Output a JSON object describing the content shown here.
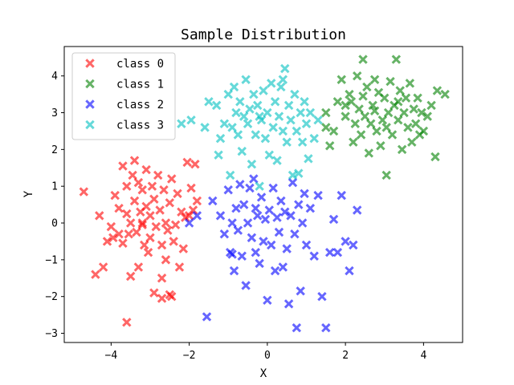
{
  "chart_data": {
    "type": "scatter",
    "title": "Sample Distribution",
    "xlabel": "X",
    "ylabel": "Y",
    "xlim": [
      -5.2,
      5.0
    ],
    "ylim": [
      -3.25,
      4.8
    ],
    "xticks": [
      -4,
      -2,
      0,
      2,
      4
    ],
    "yticks": [
      -3,
      -2,
      -1,
      0,
      1,
      2,
      3,
      4
    ],
    "xtick_labels": [
      "−4",
      "−2",
      "0",
      "2",
      "4"
    ],
    "ytick_labels": [
      "−3",
      "−2",
      "−1",
      "0",
      "1",
      "2",
      "3",
      "4"
    ],
    "grid": false,
    "legend_position": "upper left",
    "marker": "X",
    "alpha": 0.6,
    "series": [
      {
        "name": "class 0",
        "color": "#ff0000",
        "points": [
          [
            -4.7,
            0.85
          ],
          [
            -4.4,
            -1.4
          ],
          [
            -4.3,
            0.2
          ],
          [
            -4.2,
            -1.2
          ],
          [
            -4.1,
            -0.5
          ],
          [
            -4.0,
            -0.1
          ],
          [
            -3.95,
            -0.4
          ],
          [
            -3.9,
            0.75
          ],
          [
            -3.8,
            -0.3
          ],
          [
            -3.8,
            0.4
          ],
          [
            -3.7,
            1.55
          ],
          [
            -3.7,
            -0.55
          ],
          [
            -3.6,
            -2.7
          ],
          [
            -3.6,
            1.0
          ],
          [
            -3.55,
            -0.3
          ],
          [
            -3.5,
            -1.45
          ],
          [
            -3.5,
            0.0
          ],
          [
            -3.45,
            1.3
          ],
          [
            -3.4,
            1.7
          ],
          [
            -3.4,
            0.6
          ],
          [
            -3.35,
            -0.25
          ],
          [
            -3.3,
            1.1
          ],
          [
            -3.3,
            -1.2
          ],
          [
            -3.25,
            0.3
          ],
          [
            -3.2,
            0.9
          ],
          [
            -3.2,
            0.0
          ],
          [
            -3.15,
            -0.6
          ],
          [
            -3.1,
            1.45
          ],
          [
            -3.1,
            0.45
          ],
          [
            -3.05,
            -0.8
          ],
          [
            -3.0,
            -0.4
          ],
          [
            -3.0,
            0.2
          ],
          [
            -2.95,
            1.0
          ],
          [
            -2.9,
            -1.9
          ],
          [
            -2.9,
            0.65
          ],
          [
            -2.85,
            -0.1
          ],
          [
            -2.8,
            1.3
          ],
          [
            -2.75,
            0.35
          ],
          [
            -2.7,
            -0.6
          ],
          [
            -2.7,
            -1.5
          ],
          [
            -2.65,
            0.9
          ],
          [
            -2.6,
            0.0
          ],
          [
            -2.55,
            -0.2
          ],
          [
            -2.5,
            -1.95
          ],
          [
            -2.5,
            0.55
          ],
          [
            -2.45,
            1.2
          ],
          [
            -2.4,
            -0.5
          ],
          [
            -2.35,
            -0.05
          ],
          [
            -2.3,
            0.8
          ],
          [
            -2.25,
            -1.2
          ],
          [
            -2.2,
            0.3
          ],
          [
            -2.15,
            -0.7
          ],
          [
            -2.1,
            0.15
          ],
          [
            -2.05,
            1.65
          ],
          [
            -2.0,
            0.2
          ],
          [
            -1.95,
            0.95
          ],
          [
            -1.9,
            0.35
          ],
          [
            -1.85,
            1.6
          ],
          [
            -1.8,
            0.6
          ],
          [
            -2.7,
            -2.05
          ],
          [
            -2.45,
            -2.0
          ],
          [
            -2.6,
            -1.0
          ],
          [
            -3.6,
            0.25
          ],
          [
            -3.2,
            -0.05
          ]
        ]
      },
      {
        "name": "class 1",
        "color": "#008000",
        "points": [
          [
            1.5,
            2.6
          ],
          [
            1.5,
            3.0
          ],
          [
            1.6,
            2.1
          ],
          [
            1.7,
            2.5
          ],
          [
            1.8,
            3.3
          ],
          [
            1.9,
            3.9
          ],
          [
            2.0,
            2.9
          ],
          [
            2.1,
            3.5
          ],
          [
            2.15,
            3.3
          ],
          [
            2.2,
            2.2
          ],
          [
            2.25,
            2.7
          ],
          [
            2.3,
            4.0
          ],
          [
            2.35,
            3.1
          ],
          [
            2.4,
            2.4
          ],
          [
            2.45,
            4.45
          ],
          [
            2.5,
            2.9
          ],
          [
            2.55,
            3.7
          ],
          [
            2.6,
            1.9
          ],
          [
            2.65,
            2.7
          ],
          [
            2.7,
            3.2
          ],
          [
            2.75,
            3.9
          ],
          [
            2.8,
            2.5
          ],
          [
            2.85,
            3.55
          ],
          [
            2.9,
            2.1
          ],
          [
            2.95,
            2.8
          ],
          [
            3.0,
            3.4
          ],
          [
            3.05,
            1.3
          ],
          [
            3.1,
            3.0
          ],
          [
            3.15,
            3.85
          ],
          [
            3.2,
            2.4
          ],
          [
            3.25,
            3.2
          ],
          [
            3.3,
            4.45
          ],
          [
            3.35,
            2.8
          ],
          [
            3.4,
            3.6
          ],
          [
            3.45,
            2.0
          ],
          [
            3.5,
            3.0
          ],
          [
            3.55,
            3.4
          ],
          [
            3.6,
            2.6
          ],
          [
            3.65,
            3.8
          ],
          [
            3.7,
            2.2
          ],
          [
            3.75,
            3.1
          ],
          [
            3.8,
            2.7
          ],
          [
            3.85,
            3.4
          ],
          [
            3.9,
            2.4
          ],
          [
            3.95,
            3.0
          ],
          [
            4.0,
            2.5
          ],
          [
            4.1,
            2.9
          ],
          [
            4.2,
            3.2
          ],
          [
            4.3,
            1.8
          ],
          [
            4.35,
            3.6
          ],
          [
            4.55,
            3.5
          ],
          [
            2.0,
            3.2
          ],
          [
            2.75,
            3.05
          ],
          [
            3.35,
            3.3
          ],
          [
            2.45,
            3.45
          ],
          [
            3.05,
            2.6
          ]
        ]
      },
      {
        "name": "class 2",
        "color": "#0000ff",
        "points": [
          [
            -1.55,
            -2.55
          ],
          [
            -1.4,
            0.6
          ],
          [
            -1.2,
            0.2
          ],
          [
            -1.1,
            -0.3
          ],
          [
            -1.0,
            0.9
          ],
          [
            -0.95,
            -0.8
          ],
          [
            -0.9,
            0.0
          ],
          [
            -0.85,
            -1.3
          ],
          [
            -0.8,
            0.4
          ],
          [
            -0.75,
            -0.2
          ],
          [
            -0.7,
            1.05
          ],
          [
            -0.65,
            -0.9
          ],
          [
            -0.6,
            0.5
          ],
          [
            -0.55,
            -1.7
          ],
          [
            -0.5,
            0.0
          ],
          [
            -0.45,
            0.95
          ],
          [
            -0.4,
            -0.4
          ],
          [
            -0.35,
            1.2
          ],
          [
            -0.3,
            -0.8
          ],
          [
            -0.25,
            0.2
          ],
          [
            -0.2,
            -1.1
          ],
          [
            -0.15,
            0.7
          ],
          [
            -0.1,
            -0.5
          ],
          [
            -0.05,
            0.1
          ],
          [
            0.0,
            -2.1
          ],
          [
            0.05,
            0.35
          ],
          [
            0.1,
            -0.6
          ],
          [
            0.15,
            0.95
          ],
          [
            0.2,
            -1.3
          ],
          [
            0.25,
            0.15
          ],
          [
            0.3,
            -0.25
          ],
          [
            0.35,
            0.6
          ],
          [
            0.4,
            -1.2
          ],
          [
            0.45,
            0.3
          ],
          [
            0.5,
            -0.7
          ],
          [
            0.55,
            -2.2
          ],
          [
            0.6,
            0.2
          ],
          [
            0.65,
            1.1
          ],
          [
            0.7,
            -0.3
          ],
          [
            0.75,
            -2.85
          ],
          [
            0.8,
            0.5
          ],
          [
            0.85,
            -1.85
          ],
          [
            0.9,
            0.0
          ],
          [
            0.95,
            0.8
          ],
          [
            1.0,
            -0.6
          ],
          [
            1.1,
            0.4
          ],
          [
            1.2,
            -0.9
          ],
          [
            1.3,
            0.75
          ],
          [
            1.4,
            -2.0
          ],
          [
            1.5,
            -2.85
          ],
          [
            1.6,
            -0.8
          ],
          [
            1.7,
            0.1
          ],
          [
            1.8,
            -0.8
          ],
          [
            1.9,
            0.75
          ],
          [
            2.0,
            -0.5
          ],
          [
            2.1,
            -1.3
          ],
          [
            2.2,
            -0.6
          ],
          [
            2.3,
            0.35
          ],
          [
            -0.9,
            -0.85
          ],
          [
            -0.3,
            0.4
          ],
          [
            -2.0,
            0.0
          ],
          [
            -1.8,
            0.2
          ]
        ]
      },
      {
        "name": "class 3",
        "color": "#00bfbf",
        "points": [
          [
            -2.2,
            2.7
          ],
          [
            -1.95,
            2.8
          ],
          [
            -1.6,
            2.6
          ],
          [
            -1.5,
            3.3
          ],
          [
            -1.3,
            3.2
          ],
          [
            -1.25,
            1.85
          ],
          [
            -1.2,
            2.3
          ],
          [
            -1.1,
            2.7
          ],
          [
            -1.0,
            3.5
          ],
          [
            -0.95,
            1.3
          ],
          [
            -0.9,
            2.6
          ],
          [
            -0.85,
            3.7
          ],
          [
            -0.8,
            3.0
          ],
          [
            -0.75,
            2.4
          ],
          [
            -0.7,
            3.3
          ],
          [
            -0.65,
            1.95
          ],
          [
            -0.6,
            2.9
          ],
          [
            -0.55,
            3.9
          ],
          [
            -0.5,
            2.7
          ],
          [
            -0.45,
            3.1
          ],
          [
            -0.4,
            1.6
          ],
          [
            -0.35,
            3.5
          ],
          [
            -0.3,
            2.4
          ],
          [
            -0.25,
            3.2
          ],
          [
            -0.2,
            1.0
          ],
          [
            -0.15,
            2.8
          ],
          [
            -0.1,
            3.6
          ],
          [
            -0.05,
            2.3
          ],
          [
            0.0,
            3.0
          ],
          [
            0.05,
            1.85
          ],
          [
            0.1,
            3.8
          ],
          [
            0.15,
            2.6
          ],
          [
            0.2,
            3.3
          ],
          [
            0.25,
            1.7
          ],
          [
            0.3,
            2.9
          ],
          [
            0.35,
            3.7
          ],
          [
            0.4,
            2.5
          ],
          [
            0.45,
            4.2
          ],
          [
            0.5,
            2.2
          ],
          [
            0.55,
            3.2
          ],
          [
            0.6,
            2.8
          ],
          [
            0.65,
            1.3
          ],
          [
            0.7,
            3.5
          ],
          [
            0.75,
            2.5
          ],
          [
            0.8,
            1.35
          ],
          [
            0.85,
            3.0
          ],
          [
            0.9,
            2.2
          ],
          [
            0.95,
            3.3
          ],
          [
            1.0,
            2.7
          ],
          [
            1.05,
            1.75
          ],
          [
            1.1,
            3.0
          ],
          [
            1.2,
            2.3
          ],
          [
            1.3,
            2.8
          ],
          [
            0.4,
            3.9
          ],
          [
            -0.2,
            2.9
          ]
        ]
      }
    ]
  }
}
